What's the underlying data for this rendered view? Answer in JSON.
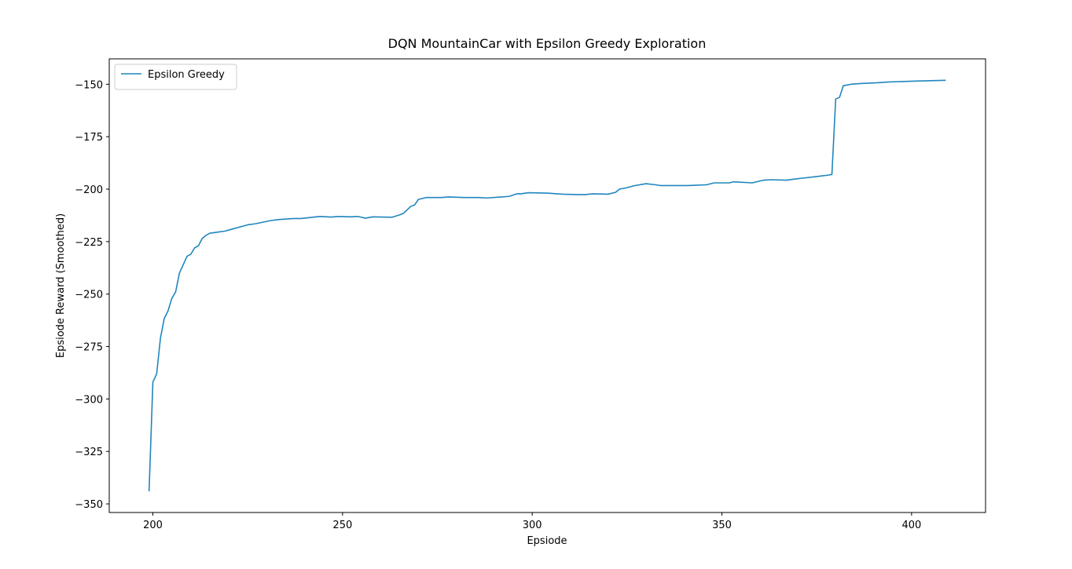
{
  "chart_data": {
    "type": "line",
    "title": "DQN MountainCar with Epsilon Greedy Exploration",
    "xlabel": "Epsiode",
    "ylabel": "Epsiode Reward (Smoothed)",
    "x": [
      199,
      200,
      201,
      202,
      203,
      204,
      205,
      206,
      207,
      208,
      209,
      210,
      211,
      212,
      213,
      214,
      215,
      217,
      219,
      221,
      223,
      225,
      227,
      231,
      233,
      237,
      239,
      244,
      247,
      249,
      252,
      254,
      256,
      258,
      263,
      265,
      266,
      268,
      269,
      270,
      272,
      274,
      276,
      278,
      282,
      286,
      288,
      292,
      294,
      296,
      297,
      299,
      304,
      308,
      312,
      314,
      316,
      320,
      322,
      323,
      325,
      327,
      330,
      332,
      334,
      337,
      341,
      346,
      348,
      352,
      353,
      358,
      361,
      363,
      367,
      371,
      375,
      378,
      379,
      380,
      381,
      382,
      384,
      387,
      391,
      394,
      401,
      409
    ],
    "series": [
      {
        "name": "Epsilon Greedy",
        "color": "#1f86bd",
        "values": [
          -344,
          -292,
          -288,
          -271,
          -261.6,
          -258,
          -252,
          -249,
          -240,
          -236,
          -232,
          -231,
          -228,
          -227,
          -223.5,
          -222,
          -221,
          -220.5,
          -220,
          -219,
          -218,
          -217,
          -216.5,
          -215,
          -214.5,
          -214,
          -214,
          -213,
          -213.3,
          -213,
          -213.2,
          -213,
          -213.8,
          -213.2,
          -213.4,
          -212.3,
          -211.6,
          -208.2,
          -207.5,
          -204.9,
          -204,
          -204,
          -204,
          -203.7,
          -204,
          -204,
          -204.2,
          -203.7,
          -203.4,
          -202.2,
          -202.2,
          -201.7,
          -201.9,
          -202.4,
          -202.6,
          -202.6,
          -202.2,
          -202.4,
          -201.5,
          -200,
          -199.3,
          -198.3,
          -197.4,
          -197.8,
          -198.3,
          -198.3,
          -198.3,
          -197.9,
          -197,
          -197,
          -196.5,
          -197,
          -195.7,
          -195.5,
          -195.7,
          -194.8,
          -194,
          -193.3,
          -193,
          -157,
          -156.3,
          -150.7,
          -150,
          -149.6,
          -149.3,
          -148.9,
          -148.5,
          -148.1
        ]
      }
    ],
    "xlim": [
      188.5,
      419.5
    ],
    "ylim": [
      -354.1,
      -137.9
    ],
    "xticks": [
      200,
      250,
      300,
      350,
      400
    ],
    "yticks": [
      {
        "value": -150,
        "label": "−150"
      },
      {
        "value": -175,
        "label": "−175"
      },
      {
        "value": -200,
        "label": "−200"
      },
      {
        "value": -225,
        "label": "−225"
      },
      {
        "value": -250,
        "label": "−250"
      },
      {
        "value": -275,
        "label": "−275"
      },
      {
        "value": -300,
        "label": "−300"
      },
      {
        "value": -325,
        "label": "−325"
      },
      {
        "value": -350,
        "label": "−350"
      }
    ],
    "grid": false,
    "legend": "upper left"
  }
}
